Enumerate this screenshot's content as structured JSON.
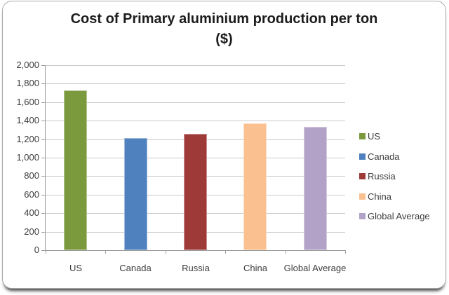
{
  "chart_data": {
    "type": "bar",
    "title": "Cost of Primary aluminium production per ton ($)",
    "title_line1": "Cost of Primary aluminium production per ton",
    "title_line2": "($)",
    "categories": [
      "US",
      "Canada",
      "Russia",
      "China",
      "Global Average"
    ],
    "values": [
      1730,
      1210,
      1260,
      1370,
      1330
    ],
    "bar_colors": [
      "#7A9A3D",
      "#4E81BD",
      "#9E3B39",
      "#FAC090",
      "#B2A2C7"
    ],
    "xlabel": "",
    "ylabel": "",
    "ylim": [
      0,
      2000
    ],
    "ytick_step": 200,
    "ytick_labels": [
      "0",
      "200",
      "400",
      "600",
      "800",
      "1,000",
      "1,200",
      "1,400",
      "1,600",
      "1,800",
      "2,000"
    ],
    "grid": true,
    "legend_position": "right",
    "legend_items": [
      "US",
      "Canada",
      "Russia",
      "China",
      "Global Average"
    ]
  },
  "style_colors": {
    "background": "#FFFFFF",
    "frame_border": "#ABABAB",
    "axis_line": "#9C9C9C",
    "gridline": "#C9C9C9",
    "title_text": "#1C1C1C",
    "label_text": "#3D3D3D"
  }
}
